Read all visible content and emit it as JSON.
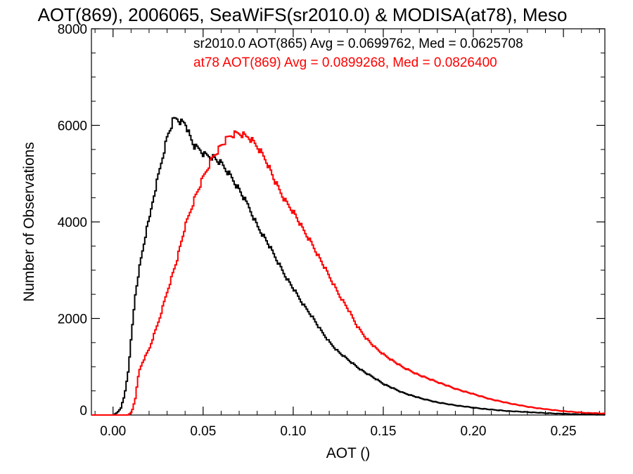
{
  "chart_data": {
    "type": "line",
    "title": "AOT(869), 2006065, SeaWiFS(sr2010.0) & MODISA(at78), Meso",
    "xlabel": "AOT ()",
    "ylabel": "Number of Observations",
    "xlim": [
      -0.012,
      0.273
    ],
    "ylim": [
      0,
      8000
    ],
    "xticks": [
      {
        "value": 0.0,
        "label": "0.00"
      },
      {
        "value": 0.05,
        "label": "0.05"
      },
      {
        "value": 0.1,
        "label": "0.10"
      },
      {
        "value": 0.15,
        "label": "0.15"
      },
      {
        "value": 0.2,
        "label": "0.20"
      },
      {
        "value": 0.25,
        "label": "0.25"
      }
    ],
    "yticks": [
      {
        "value": 0,
        "label": "0"
      },
      {
        "value": 2000,
        "label": "2000"
      },
      {
        "value": 4000,
        "label": "4000"
      },
      {
        "value": 6000,
        "label": "6000"
      },
      {
        "value": 8000,
        "label": "8000"
      }
    ],
    "grid": false,
    "legend_position": "top-right",
    "series": [
      {
        "legend": "sr2010.0 AOT(865) Avg = 0.0699762, Med = 0.0625708",
        "color": "#000000",
        "x": [
          -0.012,
          0.0,
          0.002,
          0.004,
          0.006,
          0.008,
          0.01,
          0.012,
          0.014,
          0.016,
          0.018,
          0.02,
          0.022,
          0.025,
          0.028,
          0.03,
          0.033,
          0.035,
          0.038,
          0.04,
          0.042,
          0.045,
          0.048,
          0.05,
          0.055,
          0.06,
          0.065,
          0.07,
          0.075,
          0.08,
          0.085,
          0.09,
          0.095,
          0.1,
          0.105,
          0.11,
          0.115,
          0.12,
          0.125,
          0.13,
          0.135,
          0.14,
          0.145,
          0.15,
          0.16,
          0.17,
          0.18,
          0.19,
          0.2,
          0.21,
          0.22,
          0.23,
          0.24,
          0.25,
          0.26,
          0.273
        ],
        "y": [
          0,
          0,
          50,
          150,
          400,
          900,
          1700,
          2500,
          3000,
          3400,
          3800,
          4100,
          4500,
          5000,
          5500,
          5800,
          6100,
          6150,
          6050,
          6050,
          5800,
          5550,
          5500,
          5400,
          5350,
          5200,
          4950,
          4650,
          4300,
          3900,
          3600,
          3250,
          2900,
          2600,
          2300,
          2050,
          1750,
          1500,
          1300,
          1150,
          1000,
          870,
          760,
          640,
          470,
          350,
          260,
          200,
          150,
          110,
          80,
          60,
          40,
          25,
          15,
          8
        ]
      },
      {
        "legend": "at78 AOT(869) Avg = 0.0899268, Med = 0.0826400",
        "color": "#ff0000",
        "x": [
          -0.012,
          0.008,
          0.01,
          0.012,
          0.014,
          0.016,
          0.018,
          0.02,
          0.025,
          0.03,
          0.035,
          0.04,
          0.045,
          0.05,
          0.055,
          0.06,
          0.065,
          0.07,
          0.075,
          0.08,
          0.085,
          0.09,
          0.095,
          0.1,
          0.105,
          0.11,
          0.115,
          0.12,
          0.125,
          0.13,
          0.135,
          0.14,
          0.145,
          0.15,
          0.16,
          0.17,
          0.18,
          0.19,
          0.2,
          0.21,
          0.22,
          0.23,
          0.24,
          0.25,
          0.26,
          0.273
        ],
        "y": [
          0,
          0,
          60,
          350,
          900,
          1100,
          1250,
          1400,
          1950,
          2600,
          3200,
          3950,
          4500,
          4950,
          5350,
          5600,
          5800,
          5850,
          5750,
          5550,
          5250,
          4800,
          4450,
          4200,
          3850,
          3550,
          3200,
          2850,
          2500,
          2200,
          1850,
          1600,
          1400,
          1250,
          1000,
          820,
          680,
          540,
          430,
          320,
          240,
          170,
          120,
          80,
          50,
          30
        ]
      }
    ]
  }
}
